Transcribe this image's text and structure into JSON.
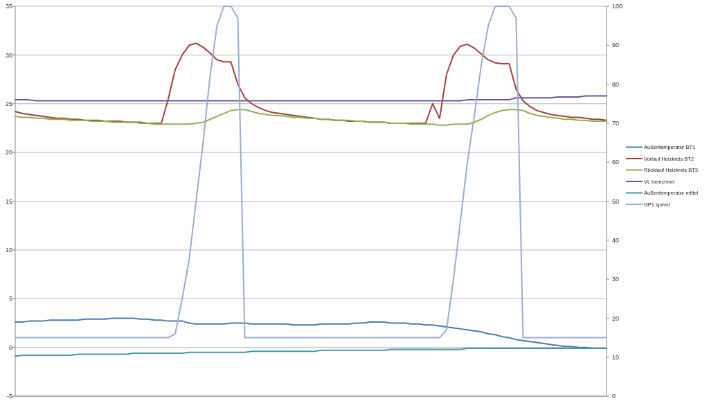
{
  "chart_data": {
    "type": "line",
    "categories": [
      null,
      null,
      null,
      null,
      null,
      null,
      null,
      null,
      null,
      null,
      null,
      null,
      null,
      null,
      null,
      null,
      null,
      null,
      null,
      null,
      null,
      null,
      null,
      null,
      null,
      null,
      null,
      null,
      null,
      null,
      null,
      null,
      null,
      null,
      null,
      null,
      null,
      null,
      null,
      null,
      null,
      null,
      null,
      null,
      null,
      null,
      null,
      null,
      null,
      null,
      null,
      null,
      null,
      null,
      null,
      null,
      null,
      null,
      null,
      null,
      null,
      null,
      null,
      null,
      null,
      null,
      null,
      null,
      null,
      null,
      null,
      null,
      null,
      null,
      null,
      null,
      null,
      null,
      null,
      null,
      null,
      null,
      null,
      null,
      null,
      null
    ],
    "ylim": [
      -5,
      35
    ],
    "yticks": [
      -5,
      0,
      5,
      10,
      15,
      20,
      25,
      30,
      35
    ],
    "y2lim": [
      0,
      100
    ],
    "y2ticks": [
      0,
      10,
      20,
      30,
      40,
      50,
      60,
      70,
      80,
      90,
      100
    ],
    "grid": "y",
    "legend": "right",
    "line_style": "solid",
    "marker": "none",
    "series": [
      {
        "name": "Außentemperatur BT1",
        "color": "#4a7ab0",
        "values": [
          2.6,
          2.6,
          2.7,
          2.7,
          2.7,
          2.8,
          2.8,
          2.8,
          2.8,
          2.8,
          2.9,
          2.9,
          2.9,
          2.9,
          3.0,
          3.0,
          3.0,
          3.0,
          2.9,
          2.9,
          2.8,
          2.8,
          2.7,
          2.7,
          2.7,
          2.5,
          2.4,
          2.4,
          2.4,
          2.4,
          2.4,
          2.5,
          2.5,
          2.5,
          2.4,
          2.4,
          2.4,
          2.4,
          2.4,
          2.4,
          2.3,
          2.3,
          2.3,
          2.3,
          2.4,
          2.4,
          2.4,
          2.4,
          2.4,
          2.5,
          2.5,
          2.6,
          2.6,
          2.6,
          2.5,
          2.5,
          2.5,
          2.4,
          2.4,
          2.3,
          2.3,
          2.2,
          2.1,
          2.0,
          1.9,
          1.8,
          1.7,
          1.6,
          1.4,
          1.3,
          1.1,
          1.0,
          0.8,
          0.7,
          0.6,
          0.5,
          0.4,
          0.3,
          0.2,
          0.1,
          0.1,
          0.0,
          0.0,
          -0.1,
          -0.1,
          -0.1
        ]
      },
      {
        "name": "Vorlauf Heizkreis BT2",
        "color": "#a0403c",
        "values": [
          24.2,
          24.0,
          23.9,
          23.8,
          23.7,
          23.6,
          23.5,
          23.5,
          23.4,
          23.4,
          23.3,
          23.3,
          23.3,
          23.2,
          23.2,
          23.2,
          23.1,
          23.1,
          23.1,
          23.0,
          23.0,
          23.0,
          25.5,
          28.5,
          30.0,
          31.0,
          31.2,
          30.8,
          30.2,
          29.5,
          29.3,
          29.3,
          27.0,
          25.6,
          25.0,
          24.6,
          24.3,
          24.1,
          24.0,
          23.9,
          23.8,
          23.7,
          23.6,
          23.5,
          23.4,
          23.4,
          23.3,
          23.3,
          23.2,
          23.2,
          23.2,
          23.1,
          23.1,
          23.1,
          23.0,
          23.0,
          23.0,
          23.0,
          23.0,
          23.0,
          25.0,
          23.5,
          28.0,
          30.0,
          30.9,
          31.1,
          30.7,
          30.1,
          29.5,
          29.2,
          29.1,
          29.1,
          26.5,
          25.3,
          24.7,
          24.3,
          24.1,
          23.9,
          23.8,
          23.7,
          23.6,
          23.6,
          23.5,
          23.4,
          23.4,
          23.3
        ]
      },
      {
        "name": "Rücklauf Heizkreis BT3",
        "color": "#8faf4e",
        "values": [
          23.7,
          23.6,
          23.6,
          23.5,
          23.5,
          23.4,
          23.4,
          23.4,
          23.3,
          23.3,
          23.3,
          23.2,
          23.2,
          23.2,
          23.1,
          23.1,
          23.1,
          23.1,
          23.0,
          23.0,
          22.9,
          22.9,
          22.9,
          22.9,
          22.9,
          22.9,
          23.0,
          23.1,
          23.4,
          23.7,
          24.0,
          24.3,
          24.4,
          24.4,
          24.2,
          24.0,
          23.9,
          23.8,
          23.8,
          23.7,
          23.6,
          23.6,
          23.5,
          23.5,
          23.4,
          23.4,
          23.3,
          23.3,
          23.3,
          23.2,
          23.2,
          23.1,
          23.1,
          23.1,
          23.0,
          23.0,
          23.0,
          22.9,
          22.9,
          22.9,
          22.9,
          22.8,
          22.8,
          22.9,
          22.9,
          22.9,
          23.1,
          23.4,
          23.8,
          24.1,
          24.3,
          24.4,
          24.4,
          24.3,
          24.0,
          23.8,
          23.7,
          23.6,
          23.5,
          23.4,
          23.4,
          23.3,
          23.3,
          23.2,
          23.2,
          23.2
        ]
      },
      {
        "name": "VL berechnet",
        "color": "#6a5598",
        "values": [
          25.4,
          25.4,
          25.4,
          25.3,
          25.3,
          25.3,
          25.3,
          25.3,
          25.3,
          25.3,
          25.3,
          25.3,
          25.3,
          25.3,
          25.3,
          25.3,
          25.3,
          25.3,
          25.3,
          25.3,
          25.3,
          25.3,
          25.3,
          25.3,
          25.3,
          25.3,
          25.3,
          25.3,
          25.3,
          25.3,
          25.3,
          25.3,
          25.3,
          25.3,
          25.3,
          25.3,
          25.3,
          25.3,
          25.3,
          25.3,
          25.3,
          25.3,
          25.3,
          25.3,
          25.3,
          25.3,
          25.3,
          25.3,
          25.3,
          25.3,
          25.3,
          25.3,
          25.3,
          25.3,
          25.3,
          25.3,
          25.3,
          25.3,
          25.3,
          25.3,
          25.3,
          25.3,
          25.3,
          25.3,
          25.3,
          25.4,
          25.4,
          25.4,
          25.4,
          25.4,
          25.4,
          25.4,
          25.6,
          25.6,
          25.6,
          25.6,
          25.6,
          25.6,
          25.7,
          25.7,
          25.7,
          25.7,
          25.8,
          25.8,
          25.8,
          25.8
        ]
      },
      {
        "name": "Außentemperatur mittel",
        "color": "#3f9aaa",
        "values": [
          -0.9,
          -0.8,
          -0.8,
          -0.8,
          -0.8,
          -0.8,
          -0.8,
          -0.8,
          -0.8,
          -0.7,
          -0.7,
          -0.7,
          -0.7,
          -0.7,
          -0.7,
          -0.7,
          -0.7,
          -0.6,
          -0.6,
          -0.6,
          -0.6,
          -0.6,
          -0.6,
          -0.6,
          -0.6,
          -0.5,
          -0.5,
          -0.5,
          -0.5,
          -0.5,
          -0.5,
          -0.5,
          -0.5,
          -0.5,
          -0.4,
          -0.4,
          -0.4,
          -0.4,
          -0.4,
          -0.4,
          -0.4,
          -0.4,
          -0.4,
          -0.4,
          -0.3,
          -0.3,
          -0.3,
          -0.3,
          -0.3,
          -0.3,
          -0.3,
          -0.3,
          -0.3,
          -0.3,
          -0.2,
          -0.2,
          -0.2,
          -0.2,
          -0.2,
          -0.2,
          -0.2,
          -0.2,
          -0.2,
          -0.2,
          -0.2,
          -0.1,
          -0.1,
          -0.1,
          -0.1,
          -0.1,
          -0.1,
          -0.1,
          -0.1,
          -0.1,
          -0.1,
          -0.1,
          -0.1,
          -0.1,
          -0.1,
          -0.1,
          -0.1,
          -0.1,
          -0.1,
          -0.1,
          -0.1,
          -0.1
        ]
      },
      {
        "name": "GP1 speed",
        "color": "#98acd0",
        "axis": "y2",
        "values": [
          15,
          15,
          15,
          15,
          15,
          15,
          15,
          15,
          15,
          15,
          15,
          15,
          15,
          15,
          15,
          15,
          15,
          15,
          15,
          15,
          15,
          15,
          15,
          16,
          25,
          35,
          50,
          65,
          82,
          95,
          100,
          100,
          97,
          15,
          15,
          15,
          15,
          15,
          15,
          15,
          15,
          15,
          15,
          15,
          15,
          15,
          15,
          15,
          15,
          15,
          15,
          15,
          15,
          15,
          15,
          15,
          15,
          15,
          15,
          15,
          15,
          15,
          17,
          30,
          45,
          60,
          72,
          85,
          95,
          100,
          100,
          100,
          97,
          15,
          15,
          15,
          15,
          15,
          15,
          15,
          15,
          15,
          15,
          15,
          15,
          15
        ]
      }
    ]
  }
}
